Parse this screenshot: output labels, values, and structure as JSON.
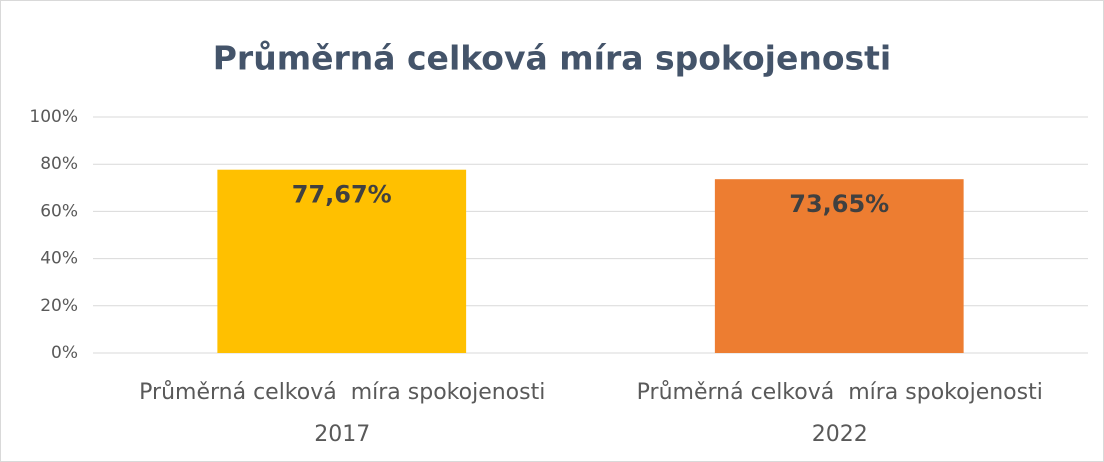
{
  "chart_data": {
    "type": "bar",
    "title": "Průměrná celková míra spokojenosti",
    "categories": [
      "Průměrná celková  míra spokojenosti\n2017",
      "Průměrná celková  míra spokojenosti\n2022"
    ],
    "values": [
      77.67,
      73.65
    ],
    "value_labels": [
      "77,67%",
      "73,65%"
    ],
    "colors": [
      "#ffc000",
      "#ed7d31"
    ],
    "ylim": [
      0,
      100
    ],
    "yticks": [
      {
        "value": 0,
        "label": "0%"
      },
      {
        "value": 20,
        "label": "20%"
      },
      {
        "value": 40,
        "label": "40%"
      },
      {
        "value": 60,
        "label": "60%"
      },
      {
        "value": 80,
        "label": "80%"
      },
      {
        "value": 100,
        "label": "100%"
      }
    ],
    "grid": true
  }
}
